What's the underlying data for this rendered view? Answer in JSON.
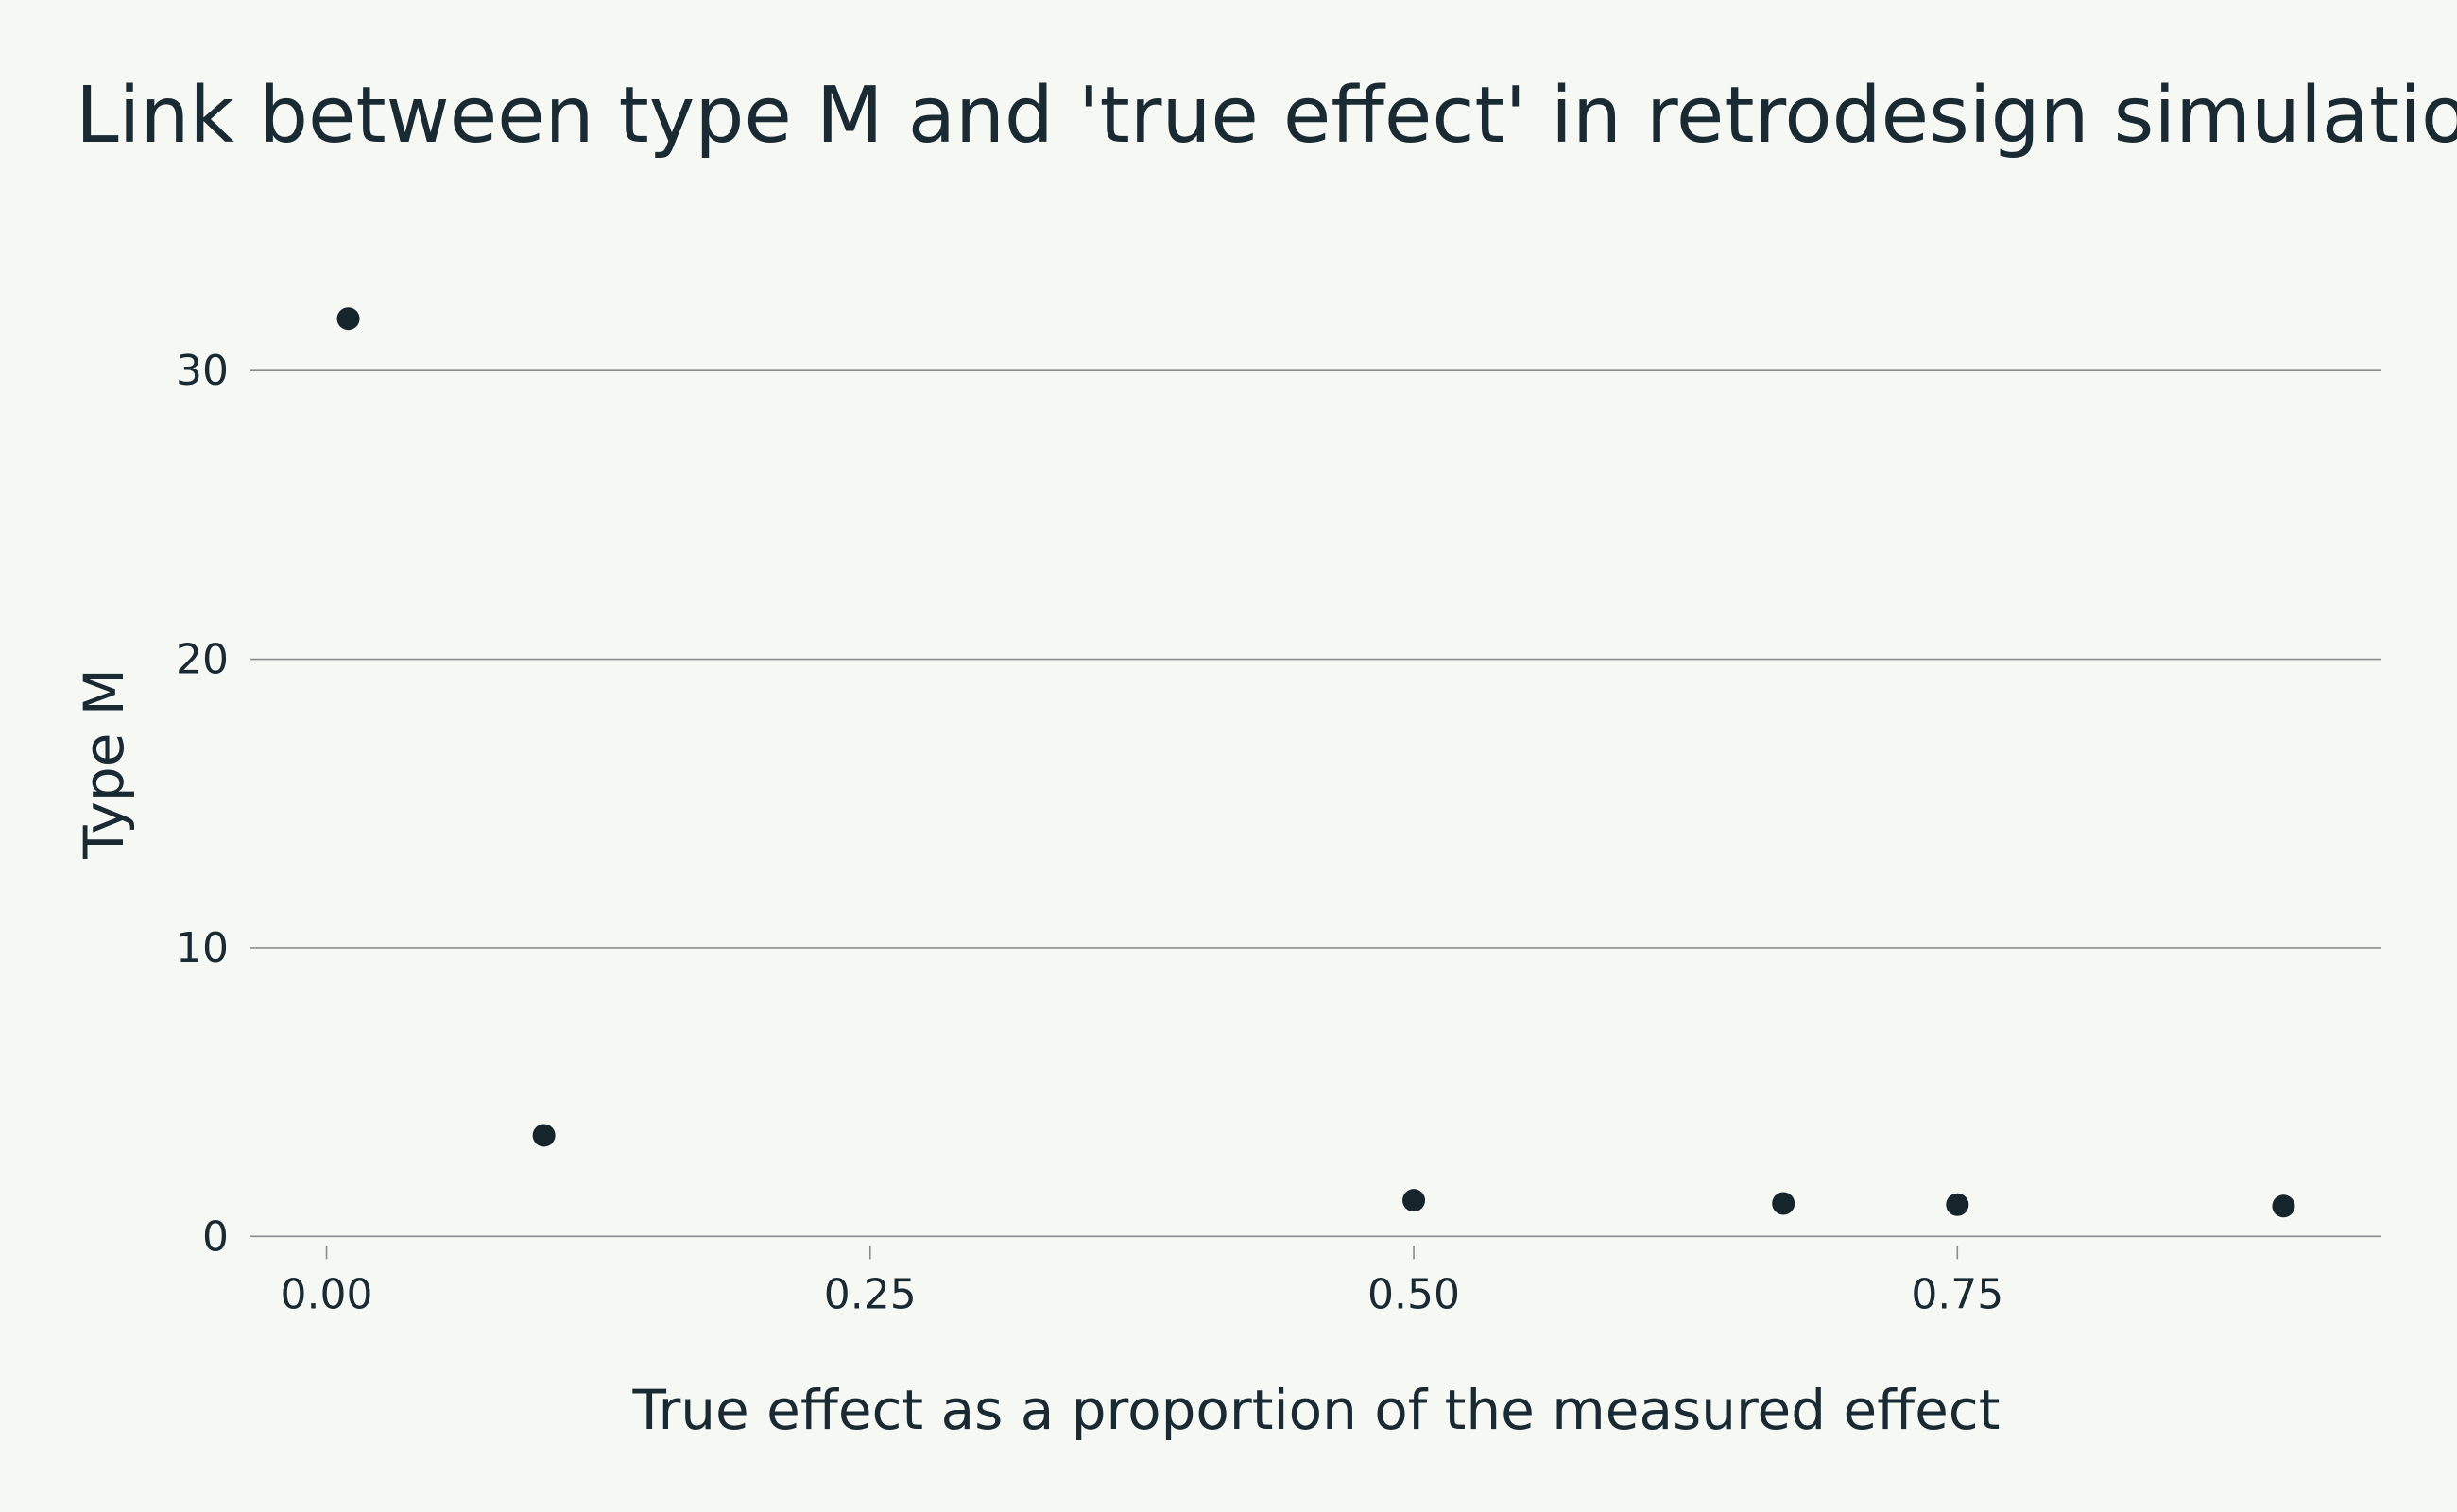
{
  "chart_data": {
    "type": "scatter",
    "title": "Link between type M and 'true effect' in retrodesign simulations",
    "xlabel": "True effect as a proportion of the measured effect",
    "ylabel": "Type M",
    "xlim": [
      -0.035,
      0.945
    ],
    "ylim": [
      -1.2,
      34
    ],
    "x_ticks": [
      0,
      0.25,
      0.5,
      0.75
    ],
    "x_tick_labels": [
      "0.00",
      "0.25",
      "0.50",
      "0.75"
    ],
    "y_ticks": [
      0,
      10,
      20,
      30
    ],
    "y_tick_labels": [
      "0",
      "10",
      "20",
      "30"
    ],
    "grid": "horizontal",
    "legend": "none",
    "point_color": "#16242b",
    "series": [
      {
        "x": [
          0.01,
          0.1,
          0.5,
          0.67,
          0.75,
          0.9
        ],
        "y": [
          31.8,
          3.5,
          1.25,
          1.14,
          1.1,
          1.05
        ]
      }
    ]
  }
}
